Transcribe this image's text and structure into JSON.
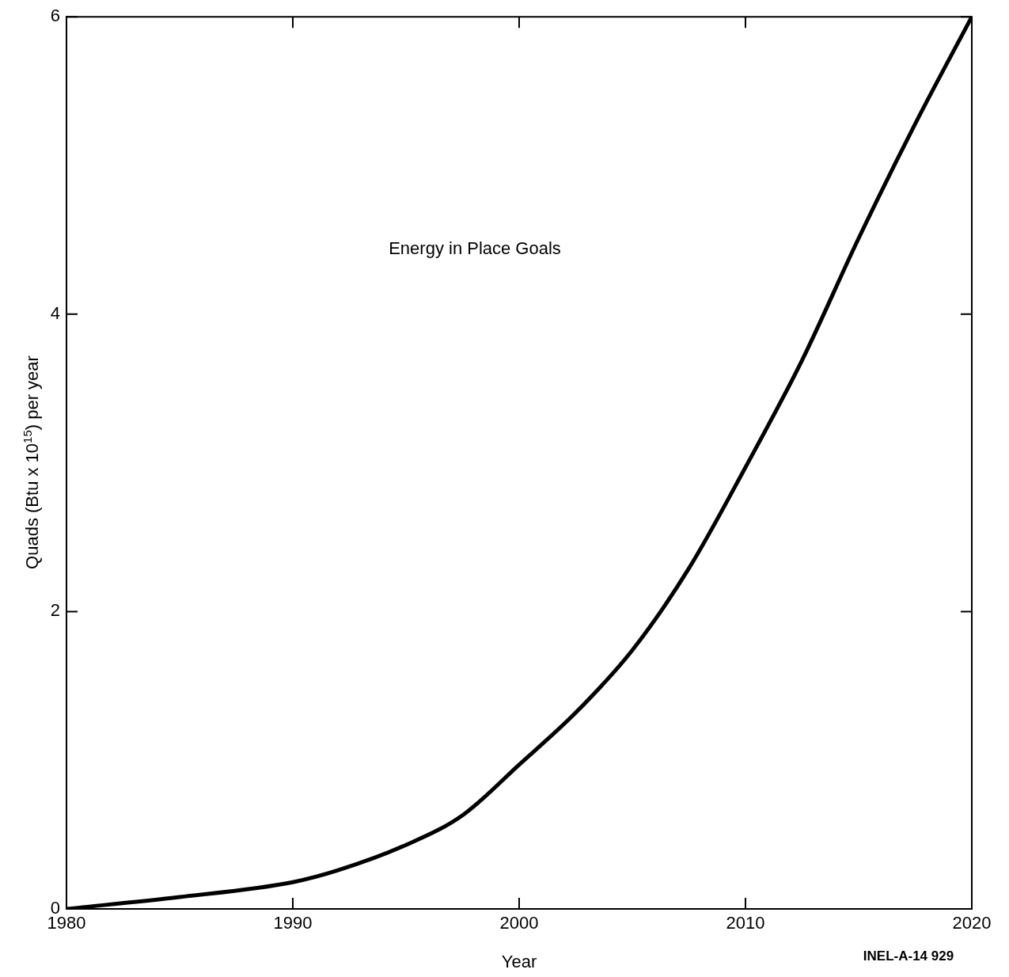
{
  "chart_data": {
    "type": "line",
    "xlabel": "Year",
    "ylabel": "Quads (Btu x 10$^{15}$) per year",
    "annotations": [
      "Energy in Place Goals",
      "INEL-A-14 929"
    ],
    "x": [
      1980,
      1985,
      1990,
      1992,
      1995,
      1997.5,
      2000,
      2002.5,
      2005,
      2007.5,
      2010,
      2012.5,
      2015,
      2017.5,
      2020
    ],
    "series": [
      {
        "color": "#000000",
        "values": [
          0,
          0.08,
          0.18,
          0.26,
          0.43,
          0.63,
          0.97,
          1.32,
          1.74,
          2.29,
          2.97,
          3.69,
          4.51,
          5.28,
          6.0
        ]
      }
    ],
    "xlim": [
      1980,
      2020
    ],
    "xticks": [
      1980,
      1990,
      2000,
      2010,
      2020
    ],
    "ylim": [
      0,
      6
    ],
    "yticks": [
      0,
      2,
      4,
      6
    ],
    "grid": false,
    "legend": false,
    "marker": "none",
    "line_style": "solid"
  }
}
